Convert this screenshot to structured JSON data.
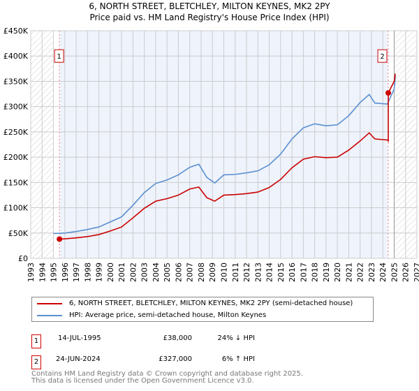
{
  "chart_data": {
    "type": "line",
    "title": "6, NORTH STREET, BLETCHLEY, MILTON KEYNES, MK2 2PY",
    "subtitle": "Price paid vs. HM Land Registry's House Price Index (HPI)",
    "xlim": [
      1993,
      2027
    ],
    "ylim": [
      0,
      450000
    ],
    "x_ticks": [
      "1993",
      "1994",
      "1995",
      "1996",
      "1997",
      "1998",
      "1999",
      "2000",
      "2001",
      "2002",
      "2003",
      "2004",
      "2005",
      "2006",
      "2007",
      "2008",
      "2009",
      "2010",
      "2011",
      "2012",
      "2013",
      "2014",
      "2015",
      "2016",
      "2017",
      "2018",
      "2019",
      "2020",
      "2021",
      "2022",
      "2023",
      "2024",
      "2025",
      "2026",
      "2027"
    ],
    "y_ticks": [
      {
        "v": 0,
        "label": "£0"
      },
      {
        "v": 50000,
        "label": "£50K"
      },
      {
        "v": 100000,
        "label": "£100K"
      },
      {
        "v": 150000,
        "label": "£150K"
      },
      {
        "v": 200000,
        "label": "£200K"
      },
      {
        "v": 250000,
        "label": "£250K"
      },
      {
        "v": 300000,
        "label": "£300K"
      },
      {
        "v": 350000,
        "label": "£350K"
      },
      {
        "v": 400000,
        "label": "£400K"
      },
      {
        "v": 450000,
        "label": "£450K"
      }
    ],
    "grid": true,
    "series": [
      {
        "name": "6, NORTH STREET, BLETCHLEY, MILTON KEYNES, MK2 2PY (semi-detached house)",
        "color": "#cc0000",
        "x": [
          1995.53,
          1996,
          1997,
          1998,
          1999,
          2000,
          2001,
          2002,
          2003,
          2004,
          2005,
          2006,
          2007,
          2007.8,
          2008.5,
          2009.2,
          2010,
          2011,
          2012,
          2013,
          2014,
          2015,
          2016,
          2017,
          2018,
          2019,
          2020,
          2021,
          2022,
          2022.8,
          2023.3,
          2024.4,
          2024.48,
          2024.48,
          2025,
          2025.1
        ],
        "y": [
          38000,
          38500,
          40500,
          43000,
          47000,
          54000,
          62000,
          80000,
          99000,
          113000,
          118000,
          125000,
          137000,
          141000,
          120000,
          113000,
          125000,
          126000,
          128000,
          131000,
          140000,
          156000,
          179000,
          196000,
          201000,
          199000,
          200000,
          214000,
          232000,
          248000,
          236000,
          234000,
          232000,
          327000,
          350000,
          365000
        ]
      },
      {
        "name": "HPI: Average price, semi-detached house, Milton Keynes",
        "color": "#5b8fd0",
        "x": [
          1995,
          1996,
          1997,
          1998,
          1999,
          2000,
          2001,
          2002,
          2003,
          2004,
          2005,
          2006,
          2007,
          2007.8,
          2008.5,
          2009.2,
          2010,
          2011,
          2012,
          2013,
          2014,
          2015,
          2016,
          2017,
          2018,
          2019,
          2020,
          2021,
          2022,
          2022.8,
          2023.3,
          2024.4,
          2025,
          2025.1
        ],
        "y": [
          49000,
          50000,
          53000,
          57000,
          62000,
          72000,
          82000,
          105000,
          130000,
          148000,
          155000,
          165000,
          180000,
          186000,
          160000,
          149000,
          165000,
          166000,
          169000,
          173000,
          185000,
          206000,
          236000,
          258000,
          266000,
          262000,
          264000,
          282000,
          308000,
          324000,
          307000,
          305000,
          335000,
          360000
        ]
      }
    ],
    "sales": [
      {
        "n": "1",
        "x": 1995.53,
        "y": 38000
      },
      {
        "n": "2",
        "x": 2024.48,
        "y": 327000
      }
    ],
    "hatched_after": 2025,
    "hatched_before": 1995
  },
  "legend": {
    "red": "6, NORTH STREET, BLETCHLEY, MILTON KEYNES, MK2 2PY (semi-detached house)",
    "blue": "HPI: Average price, semi-detached house, Milton Keynes"
  },
  "transactions": [
    {
      "n": "1",
      "date": "14-JUL-1995",
      "price": "£38,000",
      "hpi": "24% ↓ HPI"
    },
    {
      "n": "2",
      "date": "24-JUN-2024",
      "price": "£327,000",
      "hpi": "6% ↑ HPI"
    }
  ],
  "footer": {
    "line1": "Contains HM Land Registry data © Crown copyright and database right 2025.",
    "line2": "This data is licensed under the Open Government Licence v3.0."
  }
}
